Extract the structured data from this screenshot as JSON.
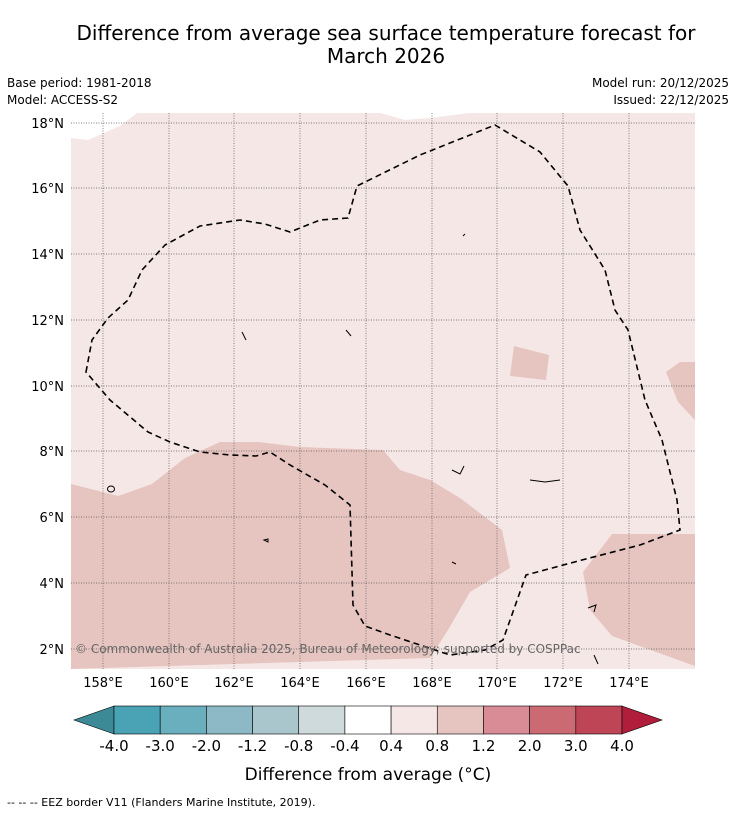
{
  "title_line1": "Difference from average sea surface temperature forecast for",
  "title_line2": "March 2026",
  "meta": {
    "base_period": "Base period: 1981-2018",
    "model": "Model: ACCESS-S2",
    "model_run": "Model run: 20/12/2025",
    "issued": "Issued: 22/12/2025"
  },
  "map": {
    "lon_ticks": [
      "158°E",
      "160°E",
      "162°E",
      "164°E",
      "166°E",
      "168°E",
      "170°E",
      "172°E",
      "174°E"
    ],
    "lat_ticks": [
      "18°N",
      "16°N",
      "14°N",
      "12°N",
      "10°N",
      "8°N",
      "6°N",
      "4°N",
      "2°N"
    ],
    "copyright": "© Commonwealth of Australia 2025, Bureau of Meteorology; supported by COSPPac",
    "background_color": "#f5e7e6",
    "warm_color": "#e6c5c1"
  },
  "colorbar": {
    "labels": [
      "-4.0",
      "-3.0",
      "-2.0",
      "-1.2",
      "-0.8",
      "-0.4",
      "0.4",
      "0.8",
      "1.2",
      "2.0",
      "3.0",
      "4.0"
    ],
    "colors": [
      "#3b8a96",
      "#4aa3b4",
      "#6aafbe",
      "#8cb9c5",
      "#a9c6cc",
      "#cfdadc",
      "#ffffff",
      "#f5e7e6",
      "#e6c5c1",
      "#d98c95",
      "#cc6a74",
      "#be4556",
      "#b01e3c"
    ],
    "title": "Difference from average (°C)"
  },
  "footer": "-- -- -- EEZ border V11 (Flanders Marine Institute, 2019)."
}
